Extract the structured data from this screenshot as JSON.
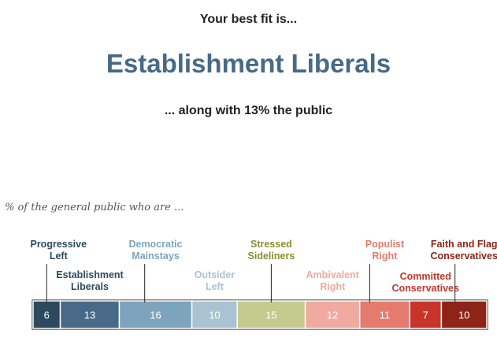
{
  "header": {
    "intro": "Your best fit is...",
    "result": "Establishment Liberals",
    "share": "... along with 13% the public"
  },
  "chart_data": {
    "type": "bar",
    "subtitle": "% of the general public who are ...",
    "orientation": "horizontal-stacked",
    "categories": [
      "Progressive Left",
      "Establishment Liberals",
      "Democratic Mainstays",
      "Outsider Left",
      "Stressed Sideliners",
      "Ambivalent Right",
      "Populist Right",
      "Committed Conservatives",
      "Faith and Flag Conservatives"
    ],
    "values": [
      6,
      13,
      16,
      10,
      15,
      12,
      11,
      7,
      10
    ],
    "colors": [
      "#2b4a5e",
      "#466a87",
      "#7ea4bd",
      "#a9c3d2",
      "#c4cb8c",
      "#f0aa9f",
      "#e57a6e",
      "#c7352a",
      "#8e2417"
    ],
    "label_colors": [
      "#2b4a5e",
      "#2b4a5e",
      "#7ea4bd",
      "#a9c3d2",
      "#86902e",
      "#f0aa9f",
      "#e57a6e",
      "#c7352a",
      "#8e2417"
    ],
    "highlighted": "Establishment Liberals"
  }
}
